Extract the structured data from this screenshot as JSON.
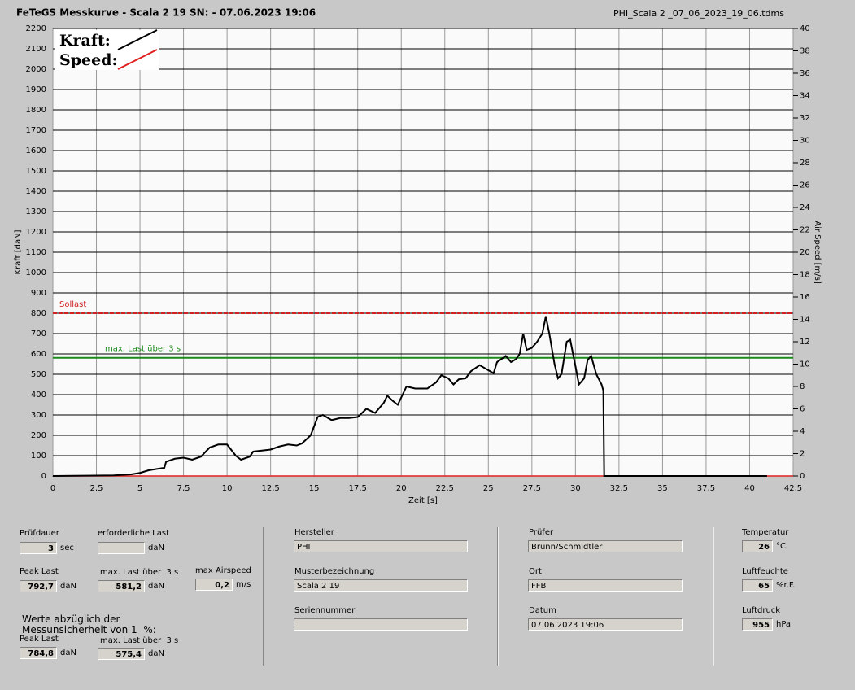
{
  "header": {
    "title": "FeTeGS Messkurve - Scala 2 19  SN:  - 07.06.2023 19:06",
    "file": "PHI_Scala 2 _07_06_2023_19_06.tdms"
  },
  "chart_data": {
    "type": "line",
    "xlabel": "Zeit [s]",
    "ylabel": "Kraft [daN]",
    "y2label": "Air Speed [m/s]",
    "xlim": [
      0,
      42.5
    ],
    "xticks": [
      0,
      {
        "value": 2.5,
        "label": "2,5"
      },
      5,
      {
        "value": 7.5,
        "label": "7,5"
      },
      10,
      {
        "value": 12.5,
        "label": "12,5"
      },
      15,
      {
        "value": 17.5,
        "label": "17,5"
      },
      20,
      {
        "value": 22.5,
        "label": "22,5"
      },
      25,
      {
        "value": 27.5,
        "label": "27,5"
      },
      30,
      {
        "value": 32.5,
        "label": "32,5"
      },
      35,
      {
        "value": 37.5,
        "label": "37,5"
      },
      40,
      {
        "value": 42.5,
        "label": "42,5"
      }
    ],
    "ylim": [
      0,
      2200
    ],
    "yticks": [
      0,
      100,
      200,
      300,
      400,
      500,
      600,
      700,
      800,
      900,
      1000,
      1100,
      1200,
      1300,
      1400,
      1500,
      1600,
      1700,
      1800,
      1900,
      2000,
      2100,
      2200
    ],
    "y2lim": [
      0,
      40
    ],
    "y2ticks": [
      0,
      2,
      4,
      6,
      8,
      10,
      12,
      14,
      16,
      18,
      20,
      22,
      24,
      26,
      28,
      30,
      32,
      34,
      36,
      38,
      40
    ],
    "grid": true,
    "reference_lines": [
      {
        "label": "Sollast",
        "value": 800,
        "color": "#d02020"
      },
      {
        "label": "max. Last über  3 s",
        "value": 581.2,
        "color": "#1a8a1a"
      }
    ],
    "series": [
      {
        "name": "Kraft:",
        "color": "#000000",
        "x": [
          0,
          2.5,
          3.5,
          4.5,
          5,
          5.5,
          6,
          6.4,
          6.5,
          7,
          7.5,
          8,
          8.5,
          9,
          9.5,
          10,
          10.5,
          10.8,
          11.3,
          11.5,
          12,
          12.5,
          13,
          13.5,
          14,
          14.3,
          14.8,
          15.2,
          15.5,
          16,
          16.5,
          17,
          17.5,
          18,
          18.5,
          19,
          19.2,
          19.5,
          19.8,
          20.3,
          20.8,
          21.5,
          22,
          22.3,
          22.7,
          23,
          23.3,
          23.7,
          24,
          24.5,
          25,
          25.3,
          25.5,
          26,
          26.3,
          26.6,
          26.8,
          27,
          27.2,
          27.5,
          27.8,
          28.1,
          28.3,
          28.5,
          28.8,
          29,
          29.2,
          29.5,
          29.7,
          30,
          30.2,
          30.5,
          30.7,
          30.9,
          31.2,
          31.5,
          31.6,
          31.65,
          41
        ],
        "values": [
          0,
          2,
          3,
          8,
          15,
          28,
          35,
          40,
          70,
          85,
          90,
          80,
          95,
          140,
          155,
          155,
          100,
          80,
          95,
          120,
          125,
          130,
          145,
          155,
          150,
          160,
          200,
          290,
          300,
          275,
          285,
          285,
          290,
          330,
          310,
          360,
          395,
          370,
          350,
          440,
          430,
          430,
          460,
          495,
          480,
          450,
          475,
          480,
          515,
          545,
          520,
          505,
          560,
          590,
          560,
          575,
          600,
          700,
          620,
          630,
          660,
          700,
          785,
          700,
          550,
          480,
          500,
          660,
          670,
          540,
          450,
          480,
          570,
          590,
          500,
          450,
          420,
          0,
          0
        ]
      },
      {
        "name": "Speed:",
        "color": "#e02020",
        "axis": "y2",
        "x": [
          0,
          42.5
        ],
        "values": [
          0,
          0
        ]
      }
    ]
  },
  "panel": {
    "note": [
      "Werte abzüglich der",
      "Messunsicherheit von 1  %:"
    ],
    "fields": [
      {
        "label": "Prüfdauer",
        "value": "3",
        "unit": "sec"
      },
      {
        "label": "erforderliche Last",
        "unit": "daN"
      },
      {
        "label": "Peak Last",
        "value": "792,7",
        "unit": "daN"
      },
      {
        "label": "max. Last über  3 s",
        "value": "581,2",
        "unit": "daN"
      },
      {
        "label": "max Airspeed",
        "value": "0,2",
        "unit": "m/s"
      },
      {
        "label": "Peak Last",
        "value": "784,8",
        "unit": "daN"
      },
      {
        "label": "max. Last über  3 s",
        "value": "575,4",
        "unit": "daN"
      },
      {
        "label": "Hersteller",
        "value": "PHI"
      },
      {
        "label": "Musterbezeichnung",
        "value": "Scala 2 19"
      },
      {
        "label": "Seriennummer"
      },
      {
        "label": "Prüfer",
        "value": "Brunn/Schmidtler"
      },
      {
        "label": "Ort",
        "value": "FFB"
      },
      {
        "label": "Datum",
        "value": "07.06.2023 19:06"
      },
      {
        "label": "Temperatur",
        "value": "26",
        "unit": "°C"
      },
      {
        "label": "Luftfeuchte",
        "value": "65",
        "unit": "%r.F."
      },
      {
        "label": "Luftdruck",
        "value": "955",
        "unit": "hPa"
      }
    ]
  }
}
